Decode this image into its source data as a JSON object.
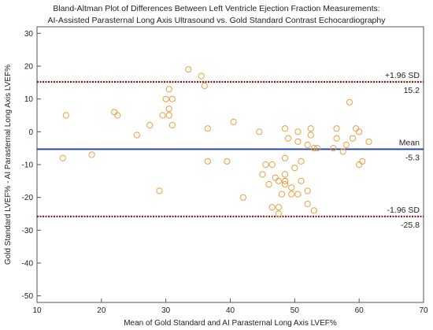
{
  "chart_data": {
    "type": "scatter",
    "title": "Bland-Altman Plot of Differences Between Left Ventricle Ejection Fraction Measurements:",
    "subtitle": "AI-Assisted Parasternal Long Axis Ultrasound vs. Gold Standard Contrast Echocardiography",
    "xlabel": "Mean of Gold Standard and AI Parasternal Long Axis LVEF%",
    "ylabel": "Gold Standard LVEF% - AI Parasternal Long Axis LVEF%",
    "xlim": [
      10,
      70
    ],
    "ylim": [
      -52,
      32
    ],
    "xticks": [
      10,
      20,
      30,
      40,
      50,
      60,
      70
    ],
    "yticks": [
      30,
      20,
      10,
      0,
      -10,
      -20,
      -30,
      -40,
      -50
    ],
    "grid": false,
    "marker": "open-circle",
    "marker_color": "#e8a040",
    "reference_lines": [
      {
        "label": "+1.96 SD",
        "value": 15.2,
        "value_label": "15.2",
        "color": "#7a1a1a",
        "style": "dotted"
      },
      {
        "label": "Mean",
        "value": -5.3,
        "value_label": "-5.3",
        "color": "#1f3fa0",
        "style": "solid"
      },
      {
        "label": "-1.96 SD",
        "value": -25.8,
        "value_label": "-25.8",
        "color": "#7a1a1a",
        "style": "dotted"
      }
    ],
    "points": [
      [
        14,
        -8
      ],
      [
        14.5,
        5
      ],
      [
        18.5,
        -7
      ],
      [
        22,
        6
      ],
      [
        22.5,
        5
      ],
      [
        25.5,
        -1
      ],
      [
        27.5,
        2
      ],
      [
        29,
        -18
      ],
      [
        29.5,
        5
      ],
      [
        30,
        10
      ],
      [
        30.5,
        13
      ],
      [
        30.5,
        7
      ],
      [
        31,
        2
      ],
      [
        30.5,
        5
      ],
      [
        31,
        10
      ],
      [
        33.5,
        19
      ],
      [
        35.5,
        17
      ],
      [
        36,
        14
      ],
      [
        36.5,
        1
      ],
      [
        36.5,
        -9
      ],
      [
        39.5,
        -9
      ],
      [
        40.5,
        3
      ],
      [
        42,
        -20
      ],
      [
        44.5,
        0
      ],
      [
        45,
        -13
      ],
      [
        45.5,
        -10
      ],
      [
        46,
        -16
      ],
      [
        46.5,
        -10
      ],
      [
        46.5,
        -23
      ],
      [
        47,
        -14
      ],
      [
        47.5,
        -15
      ],
      [
        47.5,
        -23
      ],
      [
        47.5,
        -25
      ],
      [
        48,
        -19
      ],
      [
        48.5,
        -8
      ],
      [
        48.5,
        -13
      ],
      [
        48.5,
        -15
      ],
      [
        48.5,
        -16
      ],
      [
        48.5,
        1
      ],
      [
        49,
        -2
      ],
      [
        49.5,
        -17
      ],
      [
        49.5,
        -19
      ],
      [
        50,
        -11
      ],
      [
        50.5,
        -19
      ],
      [
        50.5,
        0
      ],
      [
        50.5,
        -3
      ],
      [
        51,
        -9
      ],
      [
        51,
        -15
      ],
      [
        52,
        -4
      ],
      [
        52,
        -22
      ],
      [
        52,
        -18
      ],
      [
        52.5,
        -1
      ],
      [
        52.5,
        1
      ],
      [
        53,
        -24
      ],
      [
        53,
        -5
      ],
      [
        53.5,
        -5
      ],
      [
        56,
        -5
      ],
      [
        56.5,
        -2
      ],
      [
        56.5,
        1
      ],
      [
        57.5,
        -6
      ],
      [
        58,
        -4
      ],
      [
        58.5,
        9
      ],
      [
        59,
        -2
      ],
      [
        59.5,
        1
      ],
      [
        60,
        0
      ],
      [
        60,
        -10
      ],
      [
        60.5,
        -9
      ],
      [
        61.5,
        -3
      ]
    ]
  }
}
